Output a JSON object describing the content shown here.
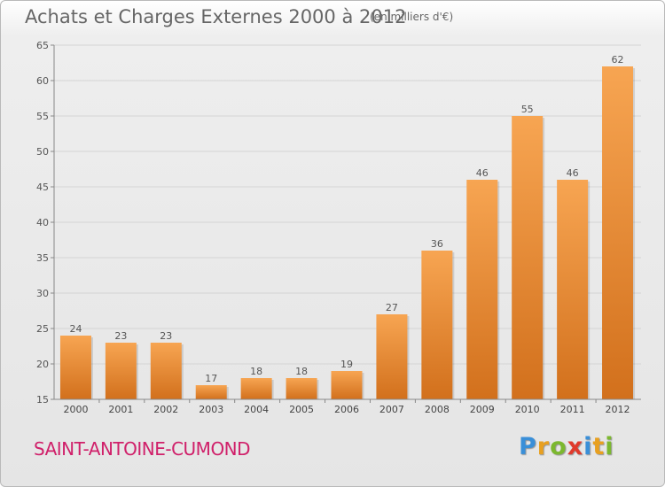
{
  "header": {
    "title": "Achats et Charges Externes 2000 à 2012",
    "unit": "(en milliers d'€)"
  },
  "footer": {
    "commune": "SAINT-ANTOINE-CUMOND",
    "brand": "Proxiti",
    "brand_letters": [
      {
        "char": "P",
        "color": "#3a8fd8"
      },
      {
        "char": "r",
        "color": "#e8a020"
      },
      {
        "char": "o",
        "color": "#7cb82f"
      },
      {
        "char": "x",
        "color": "#e03a2c"
      },
      {
        "char": "i",
        "color": "#3a8fd8"
      },
      {
        "char": "t",
        "color": "#e8a020"
      },
      {
        "char": "i",
        "color": "#7cb82f"
      }
    ]
  },
  "colors": {
    "bar_top": "#f7a552",
    "bar_bottom": "#d2701c",
    "title_text": "#666666",
    "commune_text": "#d0206a"
  },
  "chart_data": {
    "type": "bar",
    "title": "Achats et Charges Externes 2000 à 2012",
    "subtitle": "(en milliers d'€)",
    "categories": [
      "2000",
      "2001",
      "2002",
      "2003",
      "2004",
      "2005",
      "2006",
      "2007",
      "2008",
      "2009",
      "2010",
      "2011",
      "2012"
    ],
    "values": [
      24,
      23,
      23,
      17,
      18,
      18,
      19,
      27,
      36,
      46,
      55,
      46,
      62
    ],
    "ylim": [
      15,
      65
    ],
    "yticks": [
      15,
      20,
      25,
      30,
      35,
      40,
      45,
      50,
      55,
      60,
      65
    ],
    "grid": true,
    "xlabel": "",
    "ylabel": ""
  }
}
